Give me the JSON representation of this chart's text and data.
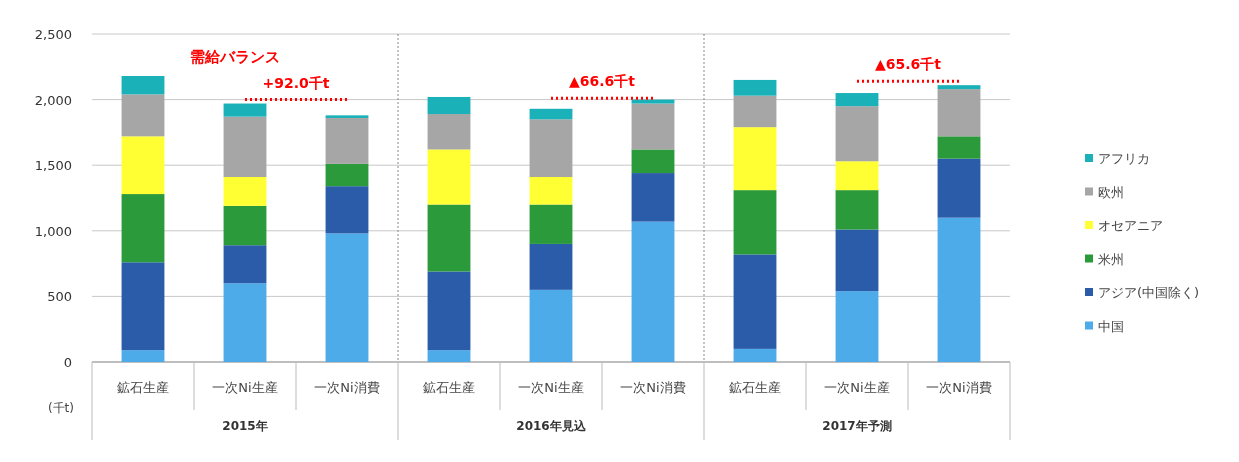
{
  "chart_data": {
    "type": "bar",
    "stacked": true,
    "title": "需給バランス",
    "ylabel": "(千t)",
    "grid": "y",
    "legend": "right",
    "line_style": "dotted",
    "categories": [
      "鉱石生産",
      "一次Ni生産",
      "一次Ni消費",
      "鉱石生産",
      "一次Ni生産",
      "一次Ni消費",
      "鉱石生産",
      "一次Ni生産",
      "一次Ni消費"
    ],
    "ylim": [
      0,
      2500
    ],
    "yticks": [
      0,
      500,
      {
        "value": 1000,
        "label": "1,000"
      },
      {
        "value": 1500,
        "label": "1,500"
      },
      {
        "value": 2000,
        "label": "2,000"
      },
      {
        "value": 2500,
        "label": "2,500"
      }
    ],
    "series": [
      {
        "name": "中国",
        "color": "#4eabe9",
        "values": [
          90,
          600,
          980,
          90,
          550,
          1070,
          100,
          540,
          1100
        ]
      },
      {
        "name": "アジア(中国除く)",
        "color": "#2a5caa",
        "values": [
          670,
          290,
          360,
          600,
          350,
          370,
          720,
          470,
          450
        ]
      },
      {
        "name": "米州",
        "color": "#2a9a3a",
        "values": [
          520,
          300,
          170,
          510,
          300,
          180,
          490,
          300,
          170
        ]
      },
      {
        "name": "オセアニア",
        "color": "#ffff33",
        "values": [
          440,
          220,
          0,
          420,
          210,
          0,
          480,
          220,
          0
        ]
      },
      {
        "name": "欧州",
        "color": "#a6a6a6",
        "values": [
          320,
          460,
          350,
          270,
          440,
          350,
          240,
          420,
          360
        ]
      },
      {
        "name": "アフリカ",
        "color": "#1ab2b8",
        "values": [
          140,
          100,
          20,
          130,
          80,
          30,
          120,
          100,
          30
        ]
      },
      {
        "type": "line",
        "color": "#ff0000",
        "values": [
          null,
          2000,
          2000,
          null,
          null,
          null,
          null,
          null,
          null
        ]
      },
      {
        "type": "line",
        "color": "#ff0000",
        "values": [
          null,
          null,
          null,
          null,
          2010,
          2010,
          null,
          null,
          null
        ]
      },
      {
        "type": "line",
        "color": "#ff0000",
        "values": [
          null,
          null,
          null,
          null,
          null,
          null,
          null,
          2140,
          2140
        ]
      }
    ],
    "annotations": [
      "2015年",
      "2016年見込",
      "2017年予測",
      "+92.0千t",
      "▲66.6千t",
      "▲65.6千t"
    ]
  }
}
